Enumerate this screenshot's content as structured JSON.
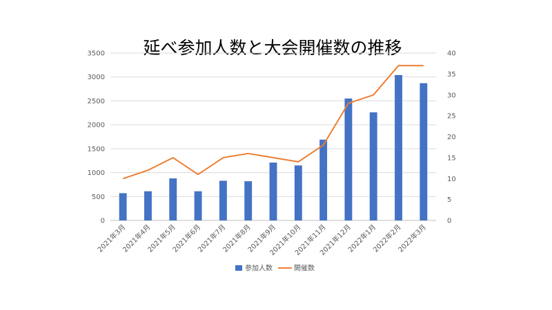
{
  "chart_data": {
    "type": "bar",
    "title": "延べ参加人数と大会開催数の推移",
    "categories": [
      "2021年3月",
      "2021年4月",
      "2021年5月",
      "2021年6月",
      "2021年7月",
      "2021年8月",
      "2021年9月",
      "2021年10月",
      "2021年11月",
      "2021年12月",
      "2022年1月",
      "2022年2月",
      "2022年3月"
    ],
    "series": [
      {
        "name": "参加人数",
        "type": "bar",
        "axis": "left",
        "color": "#4472c4",
        "values": [
          570,
          610,
          880,
          610,
          830,
          820,
          1210,
          1150,
          1690,
          2550,
          2260,
          3040,
          2870
        ]
      },
      {
        "name": "開催数",
        "type": "line",
        "axis": "right",
        "color": "#ed7d31",
        "values": [
          10,
          12,
          15,
          11,
          15,
          16,
          15,
          14,
          18,
          28,
          30,
          37,
          37
        ]
      }
    ],
    "left_axis": {
      "ylim": [
        0,
        3500
      ],
      "ticks": [
        "0",
        "500",
        "1000",
        "1500",
        "2000",
        "2500",
        "3000",
        "3500"
      ]
    },
    "right_axis": {
      "ylim": [
        0,
        40
      ],
      "ticks": [
        "0",
        "5",
        "10",
        "15",
        "20",
        "25",
        "30",
        "35",
        "40"
      ]
    },
    "grid": true,
    "legend_position": "bottom"
  }
}
